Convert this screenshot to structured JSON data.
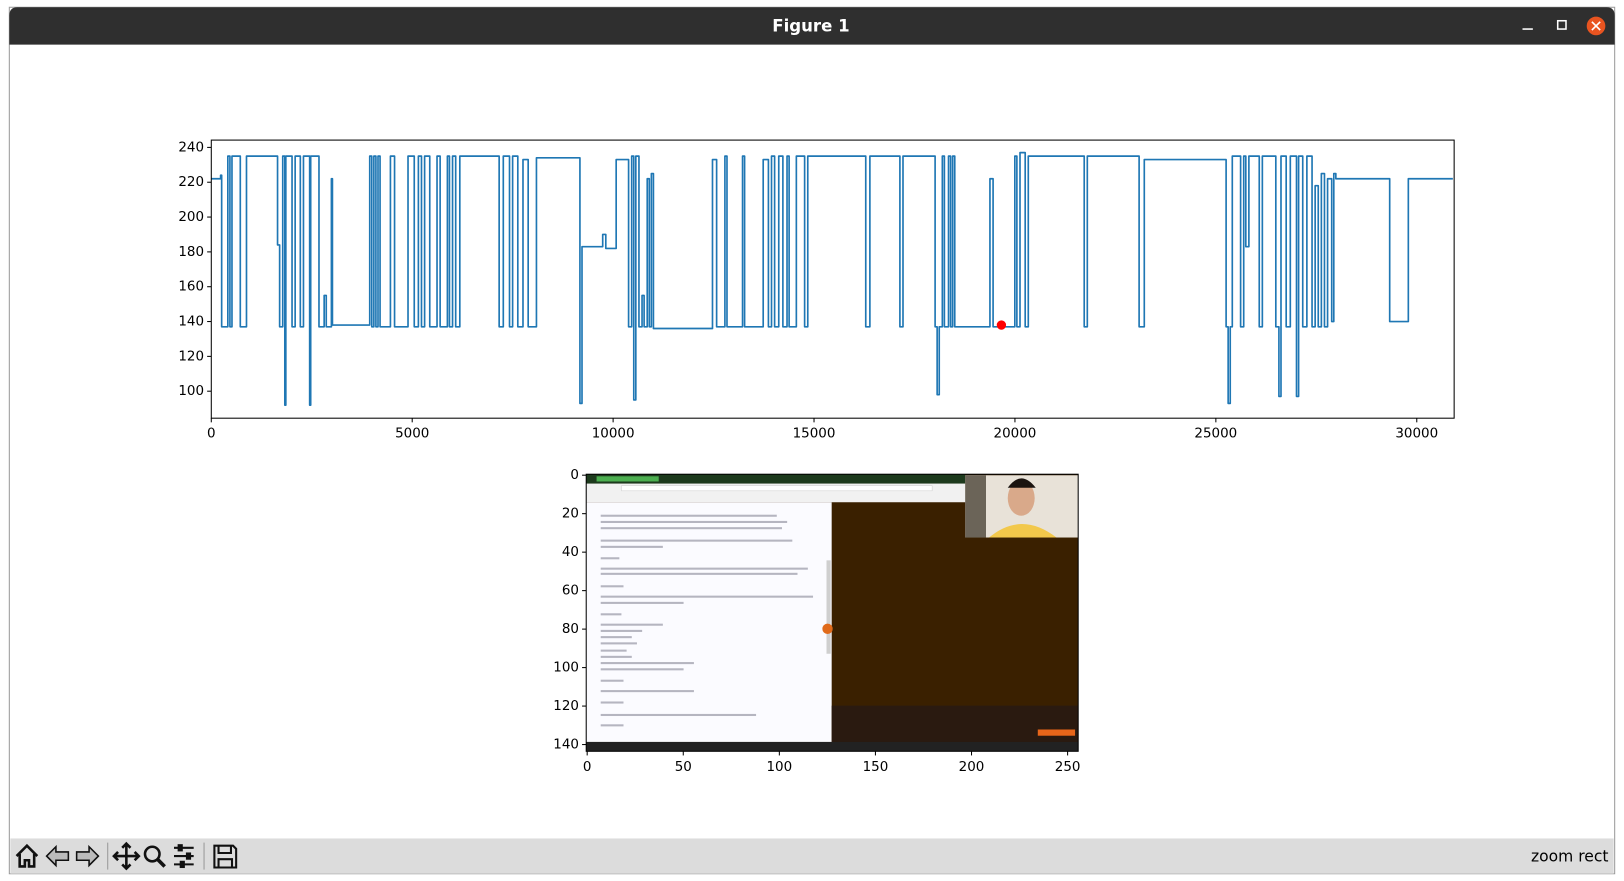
{
  "window": {
    "title": "Figure 1"
  },
  "toolbar": {
    "status": "zoom rect"
  },
  "chart_data": [
    {
      "type": "line",
      "xlim": [
        0,
        30930
      ],
      "ylim": [
        84.5,
        244.2
      ],
      "xticks": [
        0,
        5000,
        10000,
        15000,
        20000,
        25000,
        30000
      ],
      "yticks": [
        100,
        120,
        140,
        160,
        180,
        200,
        220,
        240
      ],
      "x": [
        0,
        232,
        232,
        258,
        258,
        412,
        412,
        464,
        464,
        515,
        515,
        722,
        722,
        876,
        876,
        1649,
        1649,
        1701,
        1701,
        1778,
        1778,
        1830,
        1830,
        1855,
        1855,
        2010,
        2010,
        2087,
        2087,
        2216,
        2216,
        2294,
        2294,
        2448,
        2448,
        2474,
        2474,
        2680,
        2680,
        2809,
        2809,
        2861,
        2861,
        2989,
        2989,
        3015,
        3015,
        3943,
        3943,
        3994,
        3994,
        4046,
        4046,
        4097,
        4097,
        4149,
        4149,
        4200,
        4200,
        4458,
        4458,
        4561,
        4561,
        4896,
        4896,
        5051,
        5051,
        5154,
        5154,
        5231,
        5231,
        5309,
        5309,
        5437,
        5437,
        5618,
        5618,
        5695,
        5695,
        5876,
        5876,
        5927,
        5927,
        6004,
        6004,
        6082,
        6082,
        6185,
        6185,
        7164,
        7164,
        7267,
        7267,
        7422,
        7422,
        7499,
        7499,
        7628,
        7628,
        7757,
        7757,
        7886,
        7886,
        8092,
        8092,
        9174,
        9174,
        9226,
        9226,
        9741,
        9741,
        9818,
        9818,
        10076,
        10076,
        10385,
        10385,
        10462,
        10462,
        10514,
        10514,
        10565,
        10565,
        10643,
        10643,
        10720,
        10720,
        10771,
        10771,
        10849,
        10849,
        10900,
        10900,
        10952,
        10952,
        11003,
        11003,
        12473,
        12473,
        12576,
        12576,
        12782,
        12782,
        12834,
        12834,
        13221,
        13221,
        13272,
        13272,
        13735,
        13735,
        13865,
        13865,
        13942,
        13942,
        14019,
        14019,
        14122,
        14122,
        14225,
        14225,
        14328,
        14328,
        14380,
        14380,
        14560,
        14560,
        14766,
        14766,
        14844,
        14844,
        16287,
        16287,
        16390,
        16390,
        17137,
        17137,
        17214,
        17214,
        18013,
        18013,
        18064,
        18064,
        18116,
        18116,
        18193,
        18193,
        18244,
        18244,
        18347,
        18347,
        18399,
        18399,
        18450,
        18450,
        18502,
        18502,
        19378,
        19378,
        19456,
        19456,
        19997,
        19997,
        20048,
        20048,
        20126,
        20126,
        20255,
        20255,
        20332,
        20332,
        21724,
        21724,
        21801,
        21801,
        23090,
        23090,
        23219,
        23219,
        25255,
        25255,
        25306,
        25306,
        25358,
        25358,
        25409,
        25409,
        25616,
        25616,
        25693,
        25693,
        25745,
        25745,
        25822,
        25822,
        26080,
        26080,
        26157,
        26157,
        26492,
        26492,
        26569,
        26569,
        26621,
        26621,
        26750,
        26750,
        26853,
        26853,
        27007,
        27007,
        27059,
        27059,
        27162,
        27162,
        27265,
        27265,
        27394,
        27394,
        27471,
        27471,
        27548,
        27548,
        27626,
        27626,
        27703,
        27703,
        27780,
        27780,
        27883,
        27883,
        27935,
        27935,
        27986,
        27986,
        29326,
        29326,
        29790,
        29790,
        30898
      ],
      "series": [
        {
          "color": "#1f77b4",
          "values": [
            222,
            222,
            224,
            224,
            137,
            137,
            235,
            235,
            137,
            137,
            235,
            235,
            137,
            137,
            235,
            235,
            184,
            184,
            137,
            137,
            235,
            235,
            92,
            92,
            235,
            235,
            137,
            137,
            235,
            235,
            137,
            137,
            235,
            235,
            92,
            92,
            235,
            235,
            137,
            137,
            155,
            155,
            137,
            137,
            222,
            222,
            138,
            138,
            235,
            235,
            137,
            137,
            235,
            235,
            137,
            137,
            235,
            235,
            137,
            137,
            235,
            235,
            137,
            137,
            235,
            235,
            137,
            137,
            235,
            235,
            137,
            137,
            235,
            235,
            137,
            137,
            235,
            235,
            137,
            137,
            235,
            235,
            137,
            137,
            235,
            235,
            137,
            137,
            235,
            235,
            137,
            137,
            235,
            235,
            137,
            137,
            235,
            235,
            137,
            137,
            233,
            233,
            137,
            137,
            234,
            234,
            93,
            93,
            183,
            183,
            190,
            190,
            182,
            182,
            233,
            233,
            137,
            137,
            235,
            235,
            95,
            95,
            235,
            235,
            137,
            137,
            155,
            155,
            137,
            137,
            222,
            222,
            137,
            137,
            225,
            225,
            136,
            136,
            233,
            233,
            137,
            137,
            235,
            235,
            137,
            137,
            235,
            235,
            137,
            137,
            233,
            233,
            137,
            137,
            235,
            235,
            137,
            137,
            235,
            235,
            137,
            137,
            235,
            235,
            137,
            137,
            235,
            235,
            137,
            137,
            235,
            235,
            137,
            137,
            235,
            235,
            137,
            137,
            235,
            235,
            137,
            137,
            98,
            98,
            137,
            137,
            235,
            235,
            137,
            137,
            235,
            235,
            137,
            137,
            235,
            235,
            137,
            137,
            222,
            222,
            137,
            137,
            235,
            235,
            137,
            137,
            237,
            237,
            137,
            137,
            235,
            235,
            137,
            137,
            235,
            235,
            137,
            137,
            233,
            233,
            137,
            137,
            93,
            93,
            137,
            137,
            235,
            235,
            137,
            137,
            235,
            235,
            183,
            183,
            235,
            235,
            137,
            137,
            235,
            235,
            137,
            137,
            97,
            97,
            235,
            235,
            137,
            137,
            235,
            235,
            97,
            97,
            235,
            235,
            137,
            137,
            235,
            235,
            137,
            137,
            218,
            218,
            137,
            137,
            225,
            225,
            137,
            137,
            222,
            222,
            140,
            140,
            225,
            225,
            222,
            222,
            140,
            140,
            222,
            222
          ]
        }
      ],
      "points": [
        {
          "x": 19663,
          "y": 138,
          "color": "#ff0000"
        }
      ]
    },
    {
      "type": "image",
      "xlim": [
        -0.5,
        255.5
      ],
      "ylim": [
        143.5,
        -0.5
      ],
      "xticks": [
        0,
        50,
        100,
        150,
        200,
        250
      ],
      "yticks": [
        0,
        20,
        40,
        60,
        80,
        100,
        120,
        140
      ]
    }
  ]
}
